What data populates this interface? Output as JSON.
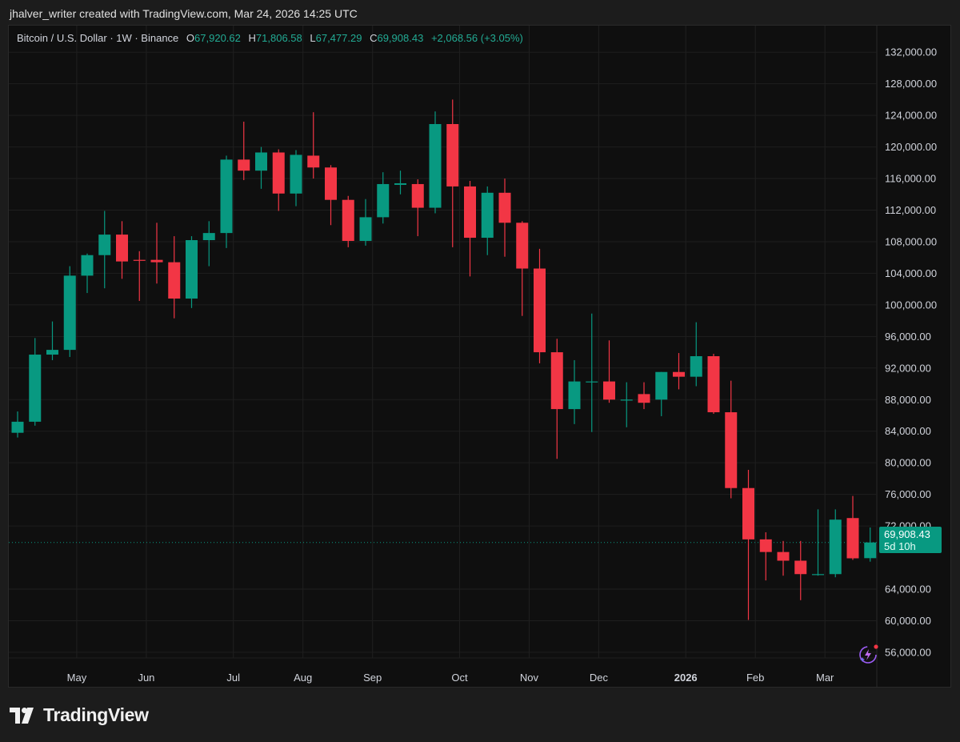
{
  "header": {
    "text": "jhalver_writer created with TradingView.com, Mar 24, 2026 14:25 UTC"
  },
  "legend": {
    "symbol": "Bitcoin / U.S. Dollar · 1W · Binance",
    "o_label": "O",
    "o_value": "67,920.62",
    "h_label": "H",
    "h_value": "71,806.58",
    "l_label": "L",
    "l_value": "67,477.29",
    "c_label": "C",
    "c_value": "69,908.43",
    "change": "+2,068.56 (+3.05%)"
  },
  "price_badge": {
    "price": "69,908.43",
    "countdown": "5d 10h"
  },
  "logo": {
    "text": "TradingView"
  },
  "colors": {
    "up": "#089981",
    "down": "#f23645",
    "background": "#0f0f0f",
    "grid": "#1f1f1f",
    "axis_text": "#d1d4dc"
  },
  "icons": {
    "ai": "sparkle-lightning-icon",
    "logo": "tradingview-logo-icon"
  },
  "chart_data": {
    "type": "candlestick",
    "title": "Bitcoin / U.S. Dollar · 1W · Binance",
    "ylim": [
      53000,
      134000
    ],
    "y_ticks": [
      132000,
      128000,
      124000,
      120000,
      116000,
      112000,
      108000,
      104000,
      100000,
      96000,
      92000,
      88000,
      84000,
      80000,
      76000,
      72000,
      64000,
      60000,
      56000
    ],
    "y_tick_labels": [
      "132,000.00",
      "128,000.00",
      "124,000.00",
      "120,000.00",
      "116,000.00",
      "112,000.00",
      "108,000.00",
      "104,000.00",
      "100,000.00",
      "96,000.00",
      "92,000.00",
      "88,000.00",
      "84,000.00",
      "80,000.00",
      "76,000.00",
      "72,000.00",
      "64,000.00",
      "60,000.00",
      "56,000.00"
    ],
    "x_labels": [
      {
        "label": "May",
        "index": 3.4
      },
      {
        "label": "Jun",
        "index": 7.4
      },
      {
        "label": "Jul",
        "index": 12.4
      },
      {
        "label": "Aug",
        "index": 16.4
      },
      {
        "label": "Sep",
        "index": 20.4
      },
      {
        "label": "Oct",
        "index": 25.4
      },
      {
        "label": "Nov",
        "index": 29.4
      },
      {
        "label": "Dec",
        "index": 33.4
      },
      {
        "label": "2026",
        "index": 38.4,
        "bold": true
      },
      {
        "label": "Feb",
        "index": 42.4
      },
      {
        "label": "Mar",
        "index": 46.4
      }
    ],
    "last_price": 69908.43,
    "candles": [
      {
        "o": 83800,
        "h": 86500,
        "l": 83200,
        "c": 85200
      },
      {
        "o": 85200,
        "h": 95800,
        "l": 84700,
        "c": 93700
      },
      {
        "o": 93700,
        "h": 97900,
        "l": 93000,
        "c": 94300
      },
      {
        "o": 94300,
        "h": 104900,
        "l": 93400,
        "c": 103700
      },
      {
        "o": 103700,
        "h": 106500,
        "l": 101500,
        "c": 106300
      },
      {
        "o": 106300,
        "h": 111900,
        "l": 102100,
        "c": 108900
      },
      {
        "o": 108900,
        "h": 110600,
        "l": 103300,
        "c": 105500
      },
      {
        "o": 105700,
        "h": 106800,
        "l": 100500,
        "c": 105600
      },
      {
        "o": 105700,
        "h": 110400,
        "l": 102700,
        "c": 105400
      },
      {
        "o": 105400,
        "h": 108700,
        "l": 98300,
        "c": 100800
      },
      {
        "o": 100800,
        "h": 108700,
        "l": 99600,
        "c": 108200
      },
      {
        "o": 108200,
        "h": 110600,
        "l": 104900,
        "c": 109100
      },
      {
        "o": 109100,
        "h": 118900,
        "l": 107200,
        "c": 118400
      },
      {
        "o": 118400,
        "h": 123200,
        "l": 115800,
        "c": 117000
      },
      {
        "o": 117000,
        "h": 120000,
        "l": 114700,
        "c": 119300
      },
      {
        "o": 119300,
        "h": 119700,
        "l": 111900,
        "c": 114100
      },
      {
        "o": 114100,
        "h": 119600,
        "l": 112500,
        "c": 119000
      },
      {
        "o": 118900,
        "h": 124400,
        "l": 116000,
        "c": 117400
      },
      {
        "o": 117400,
        "h": 117700,
        "l": 110100,
        "c": 113300
      },
      {
        "o": 113300,
        "h": 113800,
        "l": 107300,
        "c": 108100
      },
      {
        "o": 108100,
        "h": 113400,
        "l": 107500,
        "c": 111100
      },
      {
        "o": 111100,
        "h": 116800,
        "l": 110300,
        "c": 115300
      },
      {
        "o": 115200,
        "h": 117000,
        "l": 114000,
        "c": 115400
      },
      {
        "o": 115300,
        "h": 115900,
        "l": 108700,
        "c": 112300
      },
      {
        "o": 112300,
        "h": 124500,
        "l": 111600,
        "c": 122900
      },
      {
        "o": 122900,
        "h": 126000,
        "l": 107300,
        "c": 115000
      },
      {
        "o": 115000,
        "h": 115700,
        "l": 103600,
        "c": 108500
      },
      {
        "o": 108500,
        "h": 115000,
        "l": 106300,
        "c": 114200
      },
      {
        "o": 114200,
        "h": 116000,
        "l": 106100,
        "c": 110400
      },
      {
        "o": 110400,
        "h": 110600,
        "l": 98600,
        "c": 104600
      },
      {
        "o": 104600,
        "h": 107100,
        "l": 92600,
        "c": 94000
      },
      {
        "o": 94000,
        "h": 95700,
        "l": 80500,
        "c": 86800
      },
      {
        "o": 86800,
        "h": 93000,
        "l": 84900,
        "c": 90300
      },
      {
        "o": 90300,
        "h": 98900,
        "l": 83900,
        "c": 90300
      },
      {
        "o": 90300,
        "h": 95500,
        "l": 87600,
        "c": 88000
      },
      {
        "o": 88000,
        "h": 90200,
        "l": 84500,
        "c": 88000
      },
      {
        "o": 88700,
        "h": 90200,
        "l": 86800,
        "c": 87600
      },
      {
        "o": 88000,
        "h": 91500,
        "l": 85900,
        "c": 91500
      },
      {
        "o": 91500,
        "h": 93900,
        "l": 89300,
        "c": 90900
      },
      {
        "o": 90900,
        "h": 97800,
        "l": 89700,
        "c": 93500
      },
      {
        "o": 93500,
        "h": 93800,
        "l": 86200,
        "c": 86400
      },
      {
        "o": 86400,
        "h": 90400,
        "l": 75500,
        "c": 76800
      },
      {
        "o": 76800,
        "h": 79100,
        "l": 60100,
        "c": 70300
      },
      {
        "o": 70300,
        "h": 71200,
        "l": 65100,
        "c": 68700
      },
      {
        "o": 68700,
        "h": 70100,
        "l": 65700,
        "c": 67600
      },
      {
        "o": 67600,
        "h": 70100,
        "l": 62600,
        "c": 65900
      },
      {
        "o": 65900,
        "h": 74100,
        "l": 65700,
        "c": 65900
      },
      {
        "o": 65900,
        "h": 74100,
        "l": 65500,
        "c": 72800
      },
      {
        "o": 73000,
        "h": 75800,
        "l": 67700,
        "c": 67900
      },
      {
        "o": 67920.62,
        "h": 71806.58,
        "l": 67477.29,
        "c": 69908.43
      }
    ]
  }
}
